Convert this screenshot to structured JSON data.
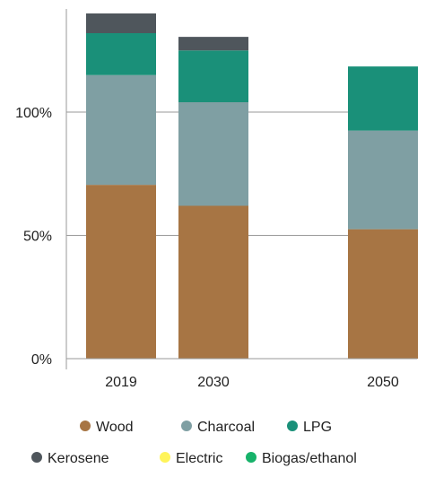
{
  "chart_data": {
    "type": "bar",
    "stacked": true,
    "categories": [
      "2019",
      "2030",
      "2050"
    ],
    "yticks": [
      "0%",
      "50%",
      "100%"
    ],
    "ylim": [
      0,
      143
    ],
    "grid": true,
    "legend_position": "bottom",
    "series": [
      {
        "name": "Wood",
        "color": "#A77544",
        "values": [
          70.5,
          62.0,
          52.5
        ]
      },
      {
        "name": "Charcoal",
        "color": "#7F9FA3",
        "values": [
          44.5,
          42.0,
          40.0
        ]
      },
      {
        "name": "LPG",
        "color": "#1A9079",
        "values": [
          17.0,
          21.0,
          26.0
        ]
      },
      {
        "name": "Kerosene",
        "color": "#4F565C",
        "values": [
          8.0,
          5.5,
          0.0
        ]
      },
      {
        "name": "Electric",
        "color": "#FFF45A",
        "values": [
          0.0,
          0.0,
          0.0
        ]
      },
      {
        "name": "Biogas/ethanol",
        "color": "#17B26A",
        "values": [
          0.0,
          0.0,
          0.0
        ]
      }
    ]
  }
}
